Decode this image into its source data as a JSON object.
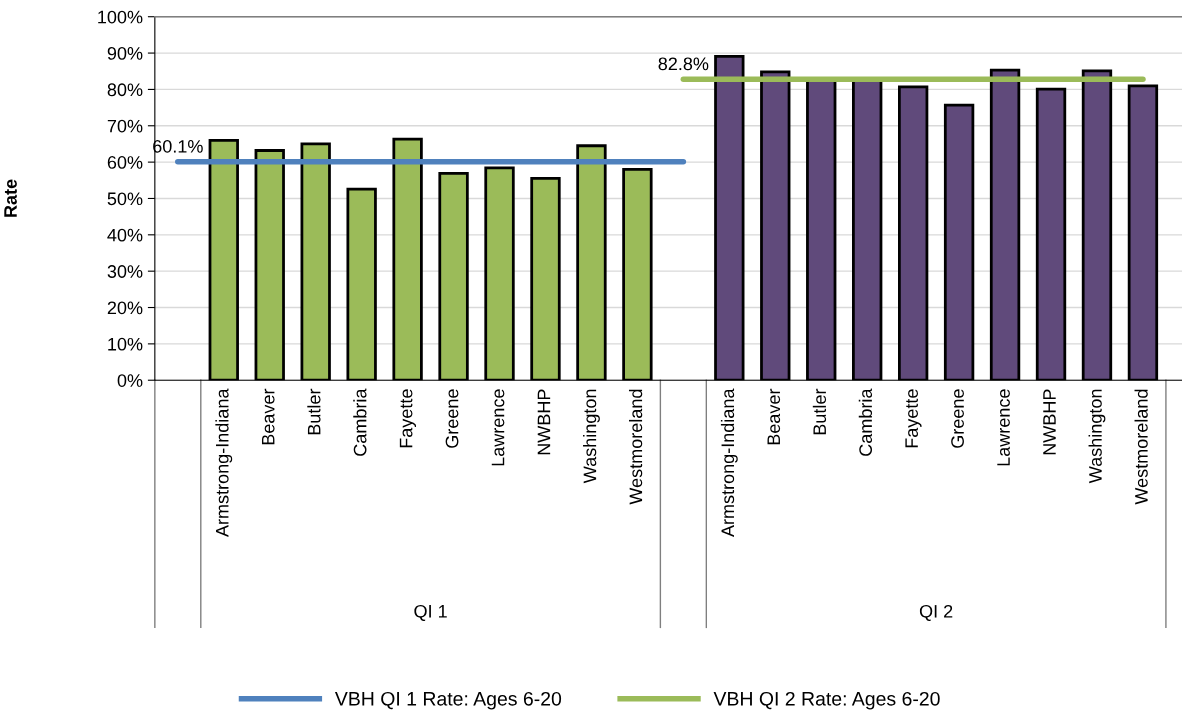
{
  "chart_data": {
    "type": "bar",
    "ylabel": "Rate",
    "categories": [
      null,
      "Armstrong-Indiana",
      "Beaver",
      "Butler",
      "Cambria",
      "Fayette",
      "Greene",
      "Lawrence",
      "NWBHP",
      "Washington",
      "Westmoreland",
      null,
      "Armstrong-Indiana",
      "Beaver",
      "Butler",
      "Cambria",
      "Fayette",
      "Greene",
      "Lawrence",
      "NWBHP",
      "Washington",
      "Westmoreland"
    ],
    "series": [
      {
        "colors": [
          "#9bbb59",
          "#9bbb59",
          "#9bbb59",
          "#9bbb59",
          "#9bbb59",
          "#9bbb59",
          "#9bbb59",
          "#9bbb59",
          "#9bbb59",
          "#9bbb59",
          "#9bbb59",
          "#604a7b",
          "#604a7b",
          "#604a7b",
          "#604a7b",
          "#604a7b",
          "#604a7b",
          "#604a7b",
          "#604a7b",
          "#604a7b",
          "#604a7b",
          "#604a7b"
        ],
        "values": [
          null,
          66.0,
          63.2,
          65.0,
          52.6,
          66.3,
          56.9,
          58.4,
          55.5,
          64.5,
          58.0,
          null,
          89.1,
          84.8,
          82.6,
          82.6,
          80.7,
          75.7,
          85.3,
          80.1,
          85.1,
          81.0
        ]
      },
      {
        "type": "line",
        "name": "VBH QI 1 Rate: Ages 6-20",
        "color": "#4f81bd",
        "values": [
          60.1,
          60.1,
          60.1,
          60.1,
          60.1,
          60.1,
          60.1,
          60.1,
          60.1,
          60.1,
          60.1,
          60.1,
          null,
          null,
          null,
          null,
          null,
          null,
          null,
          null,
          null,
          null
        ],
        "value_labels": [
          "60.1%",
          null,
          null,
          null,
          null,
          null,
          null,
          null,
          null,
          null,
          null,
          null,
          null,
          null,
          null,
          null,
          null,
          null,
          null,
          null,
          null,
          null
        ]
      },
      {
        "type": "line",
        "name": "VBH QI 2 Rate: Ages 6-20",
        "color": "#9bbb59",
        "values": [
          null,
          null,
          null,
          null,
          null,
          null,
          null,
          null,
          null,
          null,
          null,
          82.8,
          82.8,
          82.8,
          82.8,
          82.8,
          82.8,
          82.8,
          82.8,
          82.8,
          82.8,
          82.8
        ],
        "value_labels": [
          null,
          null,
          null,
          null,
          null,
          null,
          null,
          null,
          null,
          null,
          null,
          "82.8%",
          null,
          null,
          null,
          null,
          null,
          null,
          null,
          null,
          null,
          null
        ]
      }
    ],
    "annotations": [
      "QI 1",
      "QI 2"
    ],
    "ylim": [
      0,
      100
    ],
    "yticks": [
      {
        "value": 0,
        "label": "0%"
      },
      {
        "value": 10,
        "label": "10%"
      },
      {
        "value": 20,
        "label": "20%"
      },
      {
        "value": 30,
        "label": "30%"
      },
      {
        "value": 40,
        "label": "40%"
      },
      {
        "value": 50,
        "label": "50%"
      },
      {
        "value": 60,
        "label": "60%"
      },
      {
        "value": 70,
        "label": "70%"
      },
      {
        "value": 80,
        "label": "80%"
      },
      {
        "value": 90,
        "label": "90%"
      },
      {
        "value": 100,
        "label": "100%"
      }
    ],
    "grid": "y",
    "legend": "bottom"
  }
}
